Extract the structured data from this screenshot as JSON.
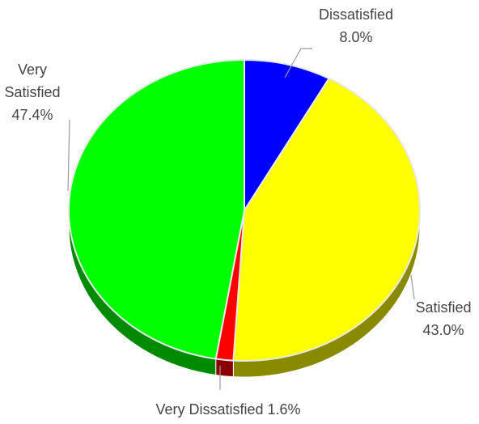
{
  "chart_data": {
    "type": "pie",
    "title": "",
    "slices": [
      {
        "name": "Dissatisfied",
        "value": 8.0,
        "display": "8.0%",
        "color": "#0000ff",
        "side_color": "#00009a"
      },
      {
        "name": "Satisfied",
        "value": 43.0,
        "display": "43.0%",
        "color": "#ffff00",
        "side_color": "#8a8a00"
      },
      {
        "name": "Very Dissatisfied",
        "value": 1.6,
        "display": "1.6%",
        "color": "#ff0000",
        "side_color": "#8a0000"
      },
      {
        "name": "Very Satisfied",
        "value": 47.4,
        "display": "47.4%",
        "color": "#00ff00",
        "side_color": "#008a00"
      }
    ],
    "labels": {
      "dissatisfied": {
        "line1": "Dissatisfied",
        "line2": "8.0%"
      },
      "satisfied": {
        "line1": "Satisfied",
        "line2": "43.0%"
      },
      "very_dissatisfied": {
        "line1": "Very Dissatisfied 1.6%"
      },
      "very_satisfied": {
        "line1": "Very",
        "line2": "Satisfied",
        "line3": "47.4%"
      }
    },
    "legend": "none",
    "start_angle_deg": 0,
    "direction": "clockwise",
    "style": "3d-perspective"
  }
}
